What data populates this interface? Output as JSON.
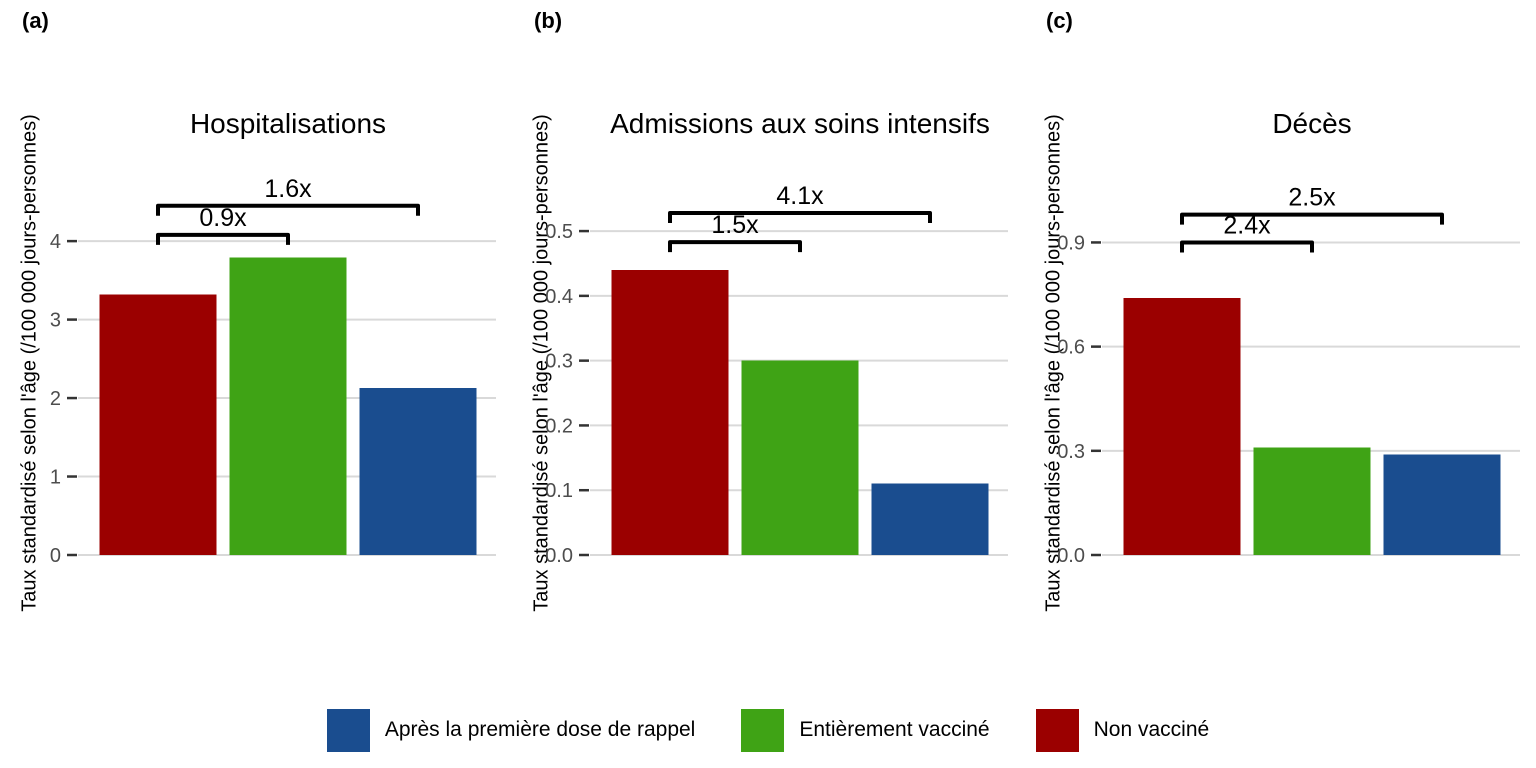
{
  "style": {
    "background": "#FFFFFF",
    "grid_color": "#D9D9D9",
    "tick_mark_color": "#333333",
    "tick_label_color": "#4D4D4D",
    "bracket_color": "#000000",
    "bar_red": "#9B0000",
    "bar_green": "#3FA315",
    "bar_blue": "#1A4D8F"
  },
  "chart_data": [
    {
      "type": "bar",
      "panel_label": "(a)",
      "title": "Hospitalisations",
      "ylabel": "Taux standardisé selon l'âge (/100 000 jours-personnes)",
      "categories": [
        "Non vacciné",
        "Entièrement vacciné",
        "Après la première dose de rappel"
      ],
      "values": [
        3.32,
        3.79,
        2.13
      ],
      "bar_colors": [
        "#9B0000",
        "#3FA315",
        "#1A4D8F"
      ],
      "yticks": [
        0,
        1,
        2,
        3,
        4
      ],
      "ytick_labels": [
        "0",
        "1",
        "2",
        "3",
        "4"
      ],
      "ylim": [
        0,
        4.97
      ],
      "grid": true,
      "annotations": [
        {
          "label": "0.9x",
          "from": 0,
          "to": 1,
          "y": 4.08
        },
        {
          "label": "1.6x",
          "from": 0,
          "to": 2,
          "y": 4.45
        }
      ]
    },
    {
      "type": "bar",
      "panel_label": "(b)",
      "title": "Admissions aux soins intensifs",
      "ylabel": "Taux standardisé selon l'âge (/100 000 jours-personnes)",
      "categories": [
        "Non vacciné",
        "Entièrement vacciné",
        "Après la première dose de rappel"
      ],
      "values": [
        0.44,
        0.3,
        0.11
      ],
      "bar_colors": [
        "#9B0000",
        "#3FA315",
        "#1A4D8F"
      ],
      "yticks": [
        0.0,
        0.1,
        0.2,
        0.3,
        0.4,
        0.5
      ],
      "ytick_labels": [
        "0.0",
        "0.1",
        "0.2",
        "0.3",
        "0.4",
        "0.5"
      ],
      "ylim": [
        0,
        0.602
      ],
      "grid": true,
      "annotations": [
        {
          "label": "1.5x",
          "from": 0,
          "to": 1,
          "y": 0.483
        },
        {
          "label": "4.1x",
          "from": 0,
          "to": 2,
          "y": 0.528
        }
      ]
    },
    {
      "type": "bar",
      "panel_label": "(c)",
      "title": "Décès",
      "ylabel": "Taux standardisé selon l'âge (/100 000 jours-personnes)",
      "categories": [
        "Non vacciné",
        "Entièrement vacciné",
        "Après la première dose de rappel"
      ],
      "values": [
        0.74,
        0.31,
        0.29
      ],
      "bar_colors": [
        "#9B0000",
        "#3FA315",
        "#1A4D8F"
      ],
      "yticks": [
        0.0,
        0.3,
        0.6,
        0.9
      ],
      "ytick_labels": [
        "0.0",
        "0.3",
        "0.6",
        "0.9"
      ],
      "ylim": [
        0,
        1.123
      ],
      "grid": true,
      "annotations": [
        {
          "label": "2.4x",
          "from": 0,
          "to": 1,
          "y": 0.9
        },
        {
          "label": "2.5x",
          "from": 0,
          "to": 2,
          "y": 0.98
        }
      ]
    }
  ],
  "legend": {
    "items": [
      {
        "label": "Après la première dose de rappel",
        "color": "#1A4D8F"
      },
      {
        "label": "Entièrement vacciné",
        "color": "#3FA315"
      },
      {
        "label": "Non vacciné",
        "color": "#9B0000"
      }
    ]
  }
}
